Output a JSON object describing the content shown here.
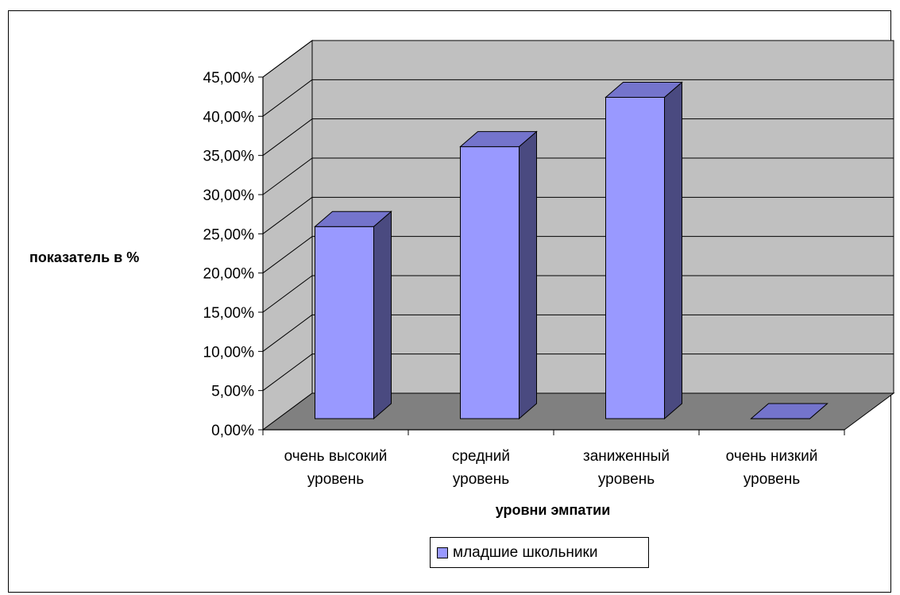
{
  "chart_data": {
    "type": "bar",
    "style": "3d-column",
    "title": "",
    "xlabel": "уровни эмпатии",
    "ylabel": "показатель в %",
    "ylim": [
      0,
      45
    ],
    "yticks": [
      "0,00%",
      "5,00%",
      "10,00%",
      "15,00%",
      "20,00%",
      "25,00%",
      "30,00%",
      "35,00%",
      "40,00%",
      "45,00%"
    ],
    "categories": [
      [
        "очень высокий",
        "уровень"
      ],
      [
        "средний",
        "уровень"
      ],
      [
        "заниженный",
        "уровень"
      ],
      [
        "очень низкий",
        "уровень"
      ]
    ],
    "series": [
      {
        "name": "младшие школьники",
        "values": [
          24.5,
          34.7,
          41,
          0
        ]
      }
    ],
    "grid": true,
    "legend_position": "bottom"
  },
  "colors": {
    "bar_front": "#9999FF",
    "bar_side": "#4A4A80",
    "bar_top": "#7474CC",
    "wall": "#C0C0C0",
    "floor": "#808080"
  }
}
